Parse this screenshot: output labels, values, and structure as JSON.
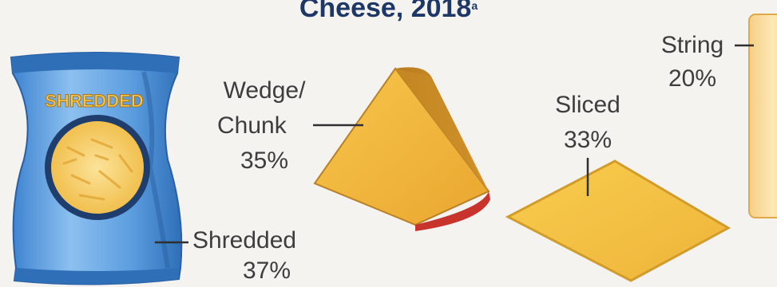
{
  "chart_data": {
    "type": "pie",
    "title": "Cheese, 2018",
    "title_footnote": "a",
    "categories": [
      "Shredded",
      "Wedge/ Chunk",
      "Sliced",
      "String"
    ],
    "values": [
      37,
      35,
      33,
      20
    ],
    "unit": "%",
    "labels": [
      {
        "line1": "Shredded",
        "line2": "37%"
      },
      {
        "line1": "Wedge/",
        "line2": "Chunk",
        "line3": "35%"
      },
      {
        "line1": "Sliced",
        "line2": "33%"
      },
      {
        "line1": "String",
        "line2": "20%"
      }
    ]
  },
  "illustrations": {
    "bag_text": "SHREDDED"
  },
  "colors": {
    "title": "#1d3766",
    "label_text": "#3d3d3d",
    "bag_blue": "#5c9ee0",
    "bag_blue_dark": "#2f6fb8",
    "cheese_yellow": "#f4bd3e",
    "cheese_dark": "#c98b25",
    "rind_red": "#c8332b",
    "string_cream": "#fbe2a4"
  }
}
